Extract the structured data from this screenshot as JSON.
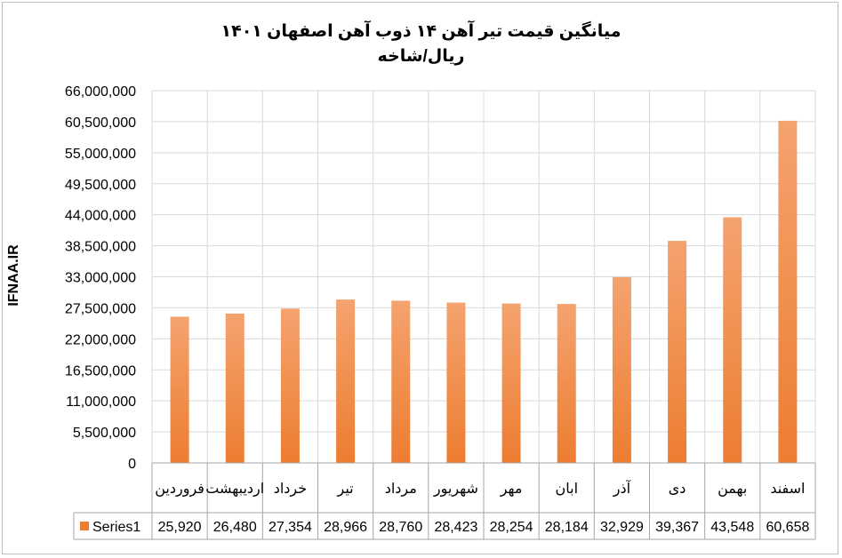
{
  "chart_data": {
    "type": "bar",
    "title": "میانگین قیمت تیر آهن ۱۴ ذوب آهن اصفهان ۱۴۰۱",
    "subtitle": "ریال/شاخه",
    "ylabel": "IFNAA.IR",
    "xlabel": "",
    "ylim": [
      0,
      66000000
    ],
    "yticks": [
      0,
      5500000,
      11000000,
      16500000,
      22000000,
      27500000,
      33000000,
      38500000,
      44000000,
      49500000,
      55000000,
      60500000,
      66000000
    ],
    "ytick_labels": [
      "0",
      "5,500,000",
      "11,000,000",
      "16,500,000",
      "22,000,000",
      "27,500,000",
      "33,000,000",
      "38,500,000",
      "44,000,000",
      "49,500,000",
      "55,000,000",
      "60,500,000",
      "66,000,000"
    ],
    "grid": true,
    "legend": "data-table-left",
    "categories": [
      [
        "فروردین"
      ],
      [
        "اردیبهشت"
      ],
      [
        "خرداد"
      ],
      [
        "تیر"
      ],
      [
        "مرداد"
      ],
      [
        "شهریور"
      ],
      [
        "مهر"
      ],
      [
        "ابان"
      ],
      [
        "آذر"
      ],
      [
        "دی"
      ],
      [
        "بهمن"
      ],
      [
        "اسفند"
      ]
    ],
    "series": [
      {
        "name": "Series1",
        "values": [
          25920000,
          26480000,
          27354000,
          28966000,
          28760000,
          28423000,
          28254000,
          28184000,
          32929000,
          39367000,
          43548000,
          60658000
        ],
        "table_labels": [
          "25,920",
          "26,480",
          "27,354",
          "28,966",
          "28,760",
          "28,423",
          "28,254",
          "28,184",
          "32,929",
          "39,367",
          "43,548",
          "60,658"
        ],
        "color": "#ed7d31",
        "color_light": "#f4a36f"
      }
    ]
  }
}
